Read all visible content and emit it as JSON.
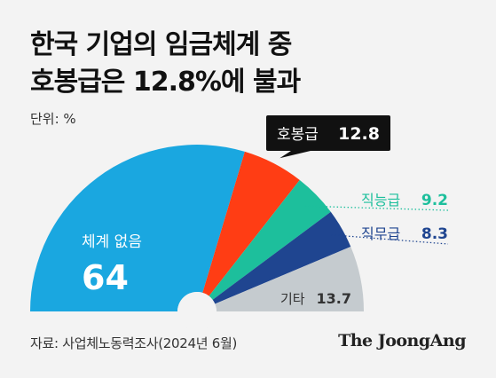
{
  "title_lines": [
    "한국 기업의 임금체계 중",
    "호봉급은 12.8%에 불과"
  ],
  "unit_label": "단위: %",
  "source": "자료: 사업체노동력조사(2024년 6월)",
  "logo": "The JoongAng",
  "colors": {
    "background": "#f3f3f3",
    "none": "#1aa7e0",
    "seniority": "#ff3d14",
    "job_ability": "#1dbf9c",
    "job_duty": "#1f4590",
    "other": "#c5cbcf",
    "callout_bg": "#111111"
  },
  "chart_data": {
    "type": "pie",
    "subtype": "half-donut (semicircle)",
    "title": "한국 기업의 임금체계 중 호봉급은 12.8%에 불과",
    "unit": "%",
    "slices": [
      {
        "label": "체계 없음",
        "value": 64,
        "display": "64",
        "color": "#1aa7e0"
      },
      {
        "label": "호봉급",
        "value": 12.8,
        "display": "12.8",
        "color": "#ff3d14"
      },
      {
        "label": "직능급",
        "value": 9.2,
        "display": "9.2",
        "color": "#1dbf9c"
      },
      {
        "label": "직무급",
        "value": 8.3,
        "display": "8.3",
        "color": "#1f4590"
      },
      {
        "label": "기타",
        "value": 13.7,
        "display": "13.7",
        "color": "#c5cbcf"
      }
    ]
  }
}
